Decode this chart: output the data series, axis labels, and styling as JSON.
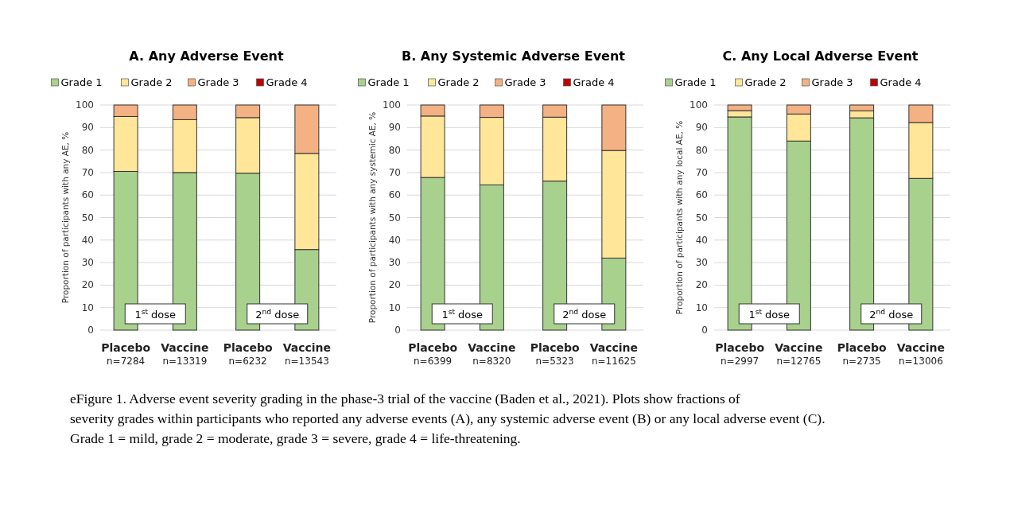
{
  "chart_data": [
    {
      "type": "bar",
      "title": "A. Any Adverse Event",
      "ylabel": "Proportion of participants with any AE, %",
      "categories": [
        "Placebo\nn=7284",
        "Vaccine\nn=13319",
        "Placebo\nn=6232",
        "Vaccine\nn=13543"
      ],
      "stacked": true,
      "ylim": [
        0,
        100
      ],
      "yticks": [
        0,
        10,
        20,
        30,
        40,
        50,
        60,
        70,
        80,
        90,
        100
      ],
      "grid": "y",
      "legend": "top",
      "series": [
        {
          "name": "Grade 1",
          "color": "#a9d18e",
          "values": [
            70.5,
            70,
            69.7,
            35.8
          ]
        },
        {
          "name": "Grade 2",
          "color": "#ffe699",
          "values": [
            24.4,
            23.5,
            24.7,
            42.7
          ]
        },
        {
          "name": "Grade 3",
          "color": "#f4b183",
          "values": [
            5.1,
            6.5,
            5.6,
            21.5
          ]
        },
        {
          "name": "Grade 4",
          "color": "#c00000",
          "values": [
            0,
            0,
            0,
            0
          ]
        }
      ],
      "annotations": [
        "1$^{st}$ dose",
        "2$^{nd}$ dose"
      ]
    },
    {
      "type": "bar",
      "title": "B. Any Systemic Adverse Event",
      "ylabel": "Proportion of participants with any systemic AE, %",
      "categories": [
        "Placebo\nn=6399",
        "Vaccine\nn=8320",
        "Placebo\nn=5323",
        "Vaccine\nn=11625"
      ],
      "stacked": true,
      "ylim": [
        0,
        100
      ],
      "yticks": [
        0,
        10,
        20,
        30,
        40,
        50,
        60,
        70,
        80,
        90,
        100
      ],
      "grid": "y",
      "legend": "top",
      "series": [
        {
          "name": "Grade 1",
          "color": "#a9d18e",
          "values": [
            67.8,
            64.5,
            66.2,
            32
          ]
        },
        {
          "name": "Grade 2",
          "color": "#ffe699",
          "values": [
            27.3,
            30,
            28.4,
            47.8
          ]
        },
        {
          "name": "Grade 3",
          "color": "#f4b183",
          "values": [
            4.9,
            5.5,
            5.4,
            20.2
          ]
        },
        {
          "name": "Grade 4",
          "color": "#c00000",
          "values": [
            0,
            0,
            0,
            0
          ]
        }
      ],
      "annotations": [
        "1$^{st}$ dose",
        "2$^{nd}$ dose"
      ]
    },
    {
      "type": "bar",
      "title": "C. Any Local Adverse Event",
      "ylabel": "Proportion of participants with any local AE, %",
      "categories": [
        "Placebo\nn=2997",
        "Vaccine\nn=12765",
        "Placebo\nn=2735",
        "Vaccine\nn=13006"
      ],
      "stacked": true,
      "ylim": [
        0,
        100
      ],
      "yticks": [
        0,
        10,
        20,
        30,
        40,
        50,
        60,
        70,
        80,
        90,
        100
      ],
      "grid": "y",
      "legend": "top",
      "series": [
        {
          "name": "Grade 1",
          "color": "#a9d18e",
          "values": [
            94.7,
            84,
            94.3,
            67.4
          ]
        },
        {
          "name": "Grade 2",
          "color": "#ffe699",
          "values": [
            2.8,
            12,
            3.1,
            24.8
          ]
        },
        {
          "name": "Grade 3",
          "color": "#f4b183",
          "values": [
            2.5,
            4,
            2.6,
            7.8
          ]
        },
        {
          "name": "Grade 4",
          "color": "#c00000",
          "values": [
            0,
            0,
            0,
            0
          ]
        }
      ],
      "annotations": [
        "1$^{st}$ dose",
        "2$^{nd}$ dose",
        "eFigure 1.  Adverse event severity grading in the phase-3 trial of the vaccine (Baden et al., 2021). Plots show fractions of",
        "severity grades within participants who reported any adverse events (A), any systemic adverse event (B) or any local adverse event (C).",
        "Grade 1 = mild, grade 2 = moderate, grade 3 = severe, grade 4 = life-threatening."
      ]
    }
  ]
}
